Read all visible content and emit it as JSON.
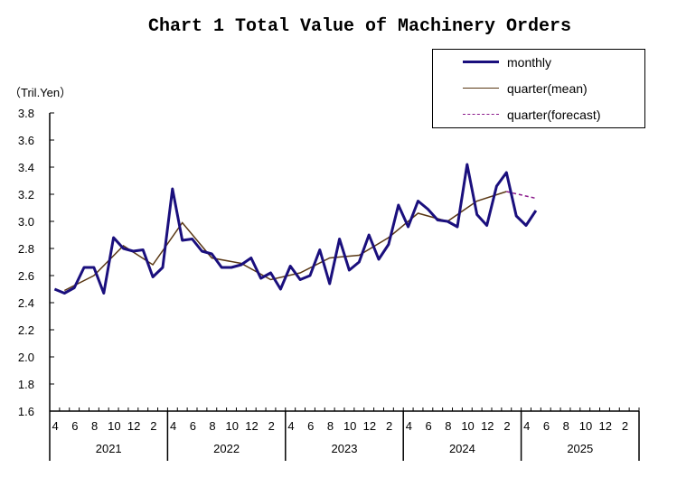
{
  "chart_data": {
    "type": "line",
    "title": "Chart 1 Total Value of Machinery Orders",
    "ylabel": "（Tril.Yen）",
    "ylim": [
      1.6,
      3.8
    ],
    "yticks": [
      "3.8",
      "3.6",
      "3.4",
      "3.2",
      "3.0",
      "2.8",
      "2.6",
      "2.4",
      "2.2",
      "2.0",
      "1.8",
      "1.6"
    ],
    "x_month_labels": [
      "4",
      "6",
      "8",
      "10",
      "12",
      "2"
    ],
    "years": [
      "2021",
      "2022",
      "2023",
      "2024",
      "2025"
    ],
    "period": "April 2021 – March 2026 (monthly)",
    "series": [
      {
        "name": "monthly",
        "color": "#1a0f7d",
        "start_month_index": 0,
        "values": [
          2.5,
          2.47,
          2.51,
          2.66,
          2.66,
          2.47,
          2.88,
          2.8,
          2.78,
          2.79,
          2.59,
          2.66,
          3.24,
          2.86,
          2.87,
          2.78,
          2.76,
          2.66,
          2.66,
          2.68,
          2.73,
          2.58,
          2.62,
          2.5,
          2.67,
          2.57,
          2.6,
          2.79,
          2.54,
          2.87,
          2.64,
          2.7,
          2.9,
          2.72,
          2.83,
          3.12,
          2.96,
          3.15,
          3.09,
          3.01,
          3.0,
          2.96,
          3.42,
          3.05,
          2.97,
          3.26,
          3.36,
          3.04,
          2.97,
          3.08
        ]
      },
      {
        "name": "quarter(mean)",
        "color": "#5a3814",
        "points": [
          [
            1,
            2.49
          ],
          [
            4,
            2.6
          ],
          [
            7,
            2.82
          ],
          [
            10,
            2.68
          ],
          [
            13,
            2.99
          ],
          [
            16,
            2.73
          ],
          [
            19,
            2.69
          ],
          [
            22,
            2.57
          ],
          [
            25,
            2.62
          ],
          [
            28,
            2.73
          ],
          [
            31,
            2.75
          ],
          [
            34,
            2.88
          ],
          [
            37,
            3.06
          ],
          [
            40,
            3.0
          ],
          [
            43,
            3.15
          ],
          [
            46,
            3.22
          ]
        ]
      },
      {
        "name": "quarter(forecast)",
        "color": "#8b1a8b",
        "points": [
          [
            46,
            3.22
          ],
          [
            49,
            3.17
          ]
        ]
      }
    ]
  },
  "legend": {
    "monthly": "monthly",
    "mean": "quarter(mean)",
    "forecast": "quarter(forecast)"
  }
}
